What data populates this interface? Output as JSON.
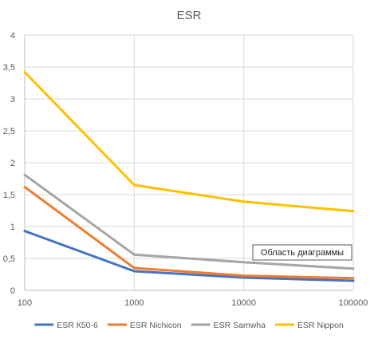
{
  "chart_data": {
    "type": "line",
    "title": "ESR",
    "x": [
      100,
      1000,
      10000,
      100000
    ],
    "x_tick_labels": [
      "100",
      "1000",
      "10000",
      "100000"
    ],
    "x_scale": "log",
    "ylim": [
      0,
      4
    ],
    "y_ticks": [
      0,
      0.5,
      1,
      1.5,
      2,
      2.5,
      3,
      3.5,
      4
    ],
    "y_tick_labels": [
      "0",
      "0,5",
      "1",
      "1,5",
      "2",
      "2,5",
      "3",
      "3,5",
      "4"
    ],
    "grid": true,
    "legend_position": "bottom",
    "series": [
      {
        "name": "ESR К50-6",
        "color": "#4472C4",
        "values": [
          0.93,
          0.3,
          0.2,
          0.15
        ]
      },
      {
        "name": "ESR Nichicon",
        "color": "#ED7D31",
        "values": [
          1.62,
          0.35,
          0.23,
          0.19
        ]
      },
      {
        "name": "ESR Samwha",
        "color": "#A5A5A5",
        "values": [
          1.81,
          0.56,
          0.44,
          0.34
        ]
      },
      {
        "name": "ESR Nippon",
        "color": "#FFC000",
        "values": [
          3.42,
          1.65,
          1.39,
          1.24
        ]
      }
    ],
    "tooltip": "Область диаграммы"
  }
}
